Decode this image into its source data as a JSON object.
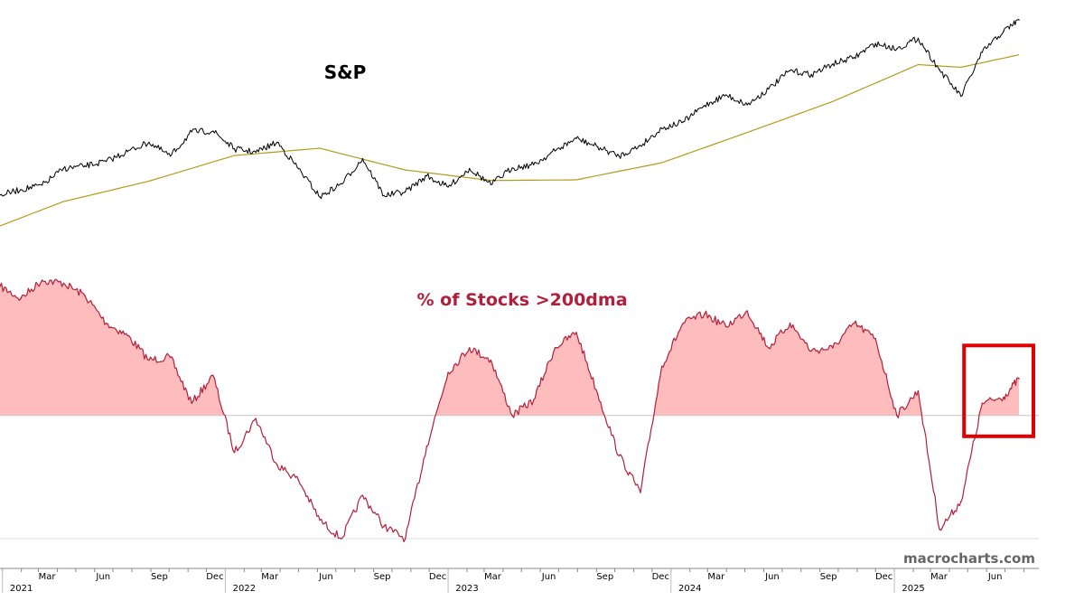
{
  "chart_data": [
    {
      "type": "line",
      "title": "S&P",
      "series": [
        {
          "x": [
            "2020-12-28",
            "2021-01-31",
            "2021-03-07",
            "2021-04-11",
            "2021-05-16",
            "2021-06-20",
            "2021-07-25",
            "2021-08-29",
            "2021-10-03",
            "2021-11-07",
            "2021-12-12",
            "2022-01-16",
            "2022-02-20",
            "2022-03-27",
            "2022-05-01",
            "2022-06-05",
            "2022-07-10",
            "2022-08-14",
            "2022-09-18",
            "2022-10-23",
            "2022-11-27",
            "2023-01-01",
            "2023-02-05",
            "2023-03-12",
            "2023-04-16",
            "2023-05-21",
            "2023-06-25",
            "2023-07-30",
            "2023-09-03",
            "2023-10-08",
            "2023-11-12",
            "2023-12-17",
            "2024-01-21",
            "2024-02-25",
            "2024-03-31",
            "2024-05-05",
            "2024-06-09",
            "2024-07-14",
            "2024-08-18",
            "2024-09-22",
            "2024-10-27",
            "2024-12-01",
            "2025-01-05",
            "2025-02-09",
            "2025-03-16",
            "2025-04-20",
            "2025-05-25",
            "2025-06-29",
            "2025-07-24"
          ],
          "values": [
            3730,
            3810,
            3880,
            4130,
            4170,
            4240,
            4390,
            4530,
            4320,
            4690,
            4700,
            4430,
            4380,
            4530,
            4130,
            3700,
            3900,
            4280,
            3720,
            3780,
            4020,
            3850,
            4130,
            3890,
            4140,
            4190,
            4400,
            4590,
            4460,
            4320,
            4480,
            4740,
            4840,
            5090,
            5250,
            5100,
            5340,
            5620,
            5560,
            5720,
            5820,
            6030,
            5950,
            6110,
            5630,
            5230,
            5900,
            6220,
            6390
          ]
        },
        {
          "x": [
            "2020-12-28",
            "2021-04-11",
            "2021-08-29",
            "2022-01-16",
            "2022-06-05",
            "2022-10-23",
            "2023-03-12",
            "2023-07-30",
            "2023-12-17",
            "2024-05-05",
            "2024-09-22",
            "2025-02-09",
            "2025-04-20",
            "2025-07-24"
          ],
          "values": [
            3260,
            3630,
            3940,
            4330,
            4440,
            4110,
            3950,
            3960,
            4220,
            4680,
            5150,
            5710,
            5670,
            5860
          ]
        }
      ]
    },
    {
      "type": "area",
      "title": "% of Stocks >200dma",
      "x": [
        "2020-12-28",
        "2021-01-31",
        "2021-03-07",
        "2021-04-11",
        "2021-05-16",
        "2021-06-20",
        "2021-07-25",
        "2021-08-29",
        "2021-10-03",
        "2021-11-07",
        "2021-12-12",
        "2022-01-16",
        "2022-02-20",
        "2022-03-27",
        "2022-05-01",
        "2022-06-05",
        "2022-07-10",
        "2022-08-14",
        "2022-09-18",
        "2022-10-23",
        "2022-11-27",
        "2023-01-01",
        "2023-02-05",
        "2023-03-12",
        "2023-04-16",
        "2023-05-21",
        "2023-06-25",
        "2023-07-30",
        "2023-09-03",
        "2023-10-08",
        "2023-11-12",
        "2023-12-17",
        "2024-01-21",
        "2024-02-25",
        "2024-03-31",
        "2024-05-05",
        "2024-06-09",
        "2024-07-14",
        "2024-08-18",
        "2024-09-22",
        "2024-10-27",
        "2024-12-01",
        "2025-01-05",
        "2025-02-09",
        "2025-03-16",
        "2025-04-20",
        "2025-05-25",
        "2025-06-29",
        "2025-07-24"
      ],
      "values": [
        92,
        88,
        94,
        93,
        89,
        80,
        76,
        68,
        69,
        54,
        63,
        38,
        49,
        34,
        29,
        16,
        10,
        24,
        14,
        10,
        40,
        64,
        72,
        68,
        50,
        55,
        72,
        77,
        57,
        37,
        25,
        66,
        80,
        83,
        79,
        84,
        72,
        80,
        71,
        72,
        80,
        75,
        50,
        58,
        13,
        22,
        54,
        56,
        62
      ],
      "baseline": 50,
      "highlight": "2025-05 to 2025-07"
    }
  ],
  "axis": {
    "months": [
      "Mar",
      "Jun",
      "Sep",
      "Dec",
      "Mar",
      "Jun",
      "Sep",
      "Dec",
      "Mar",
      "Jun",
      "Sep",
      "Dec",
      "Mar",
      "Jun",
      "Sep",
      "Dec",
      "Mar",
      "Jun"
    ],
    "years": [
      "2021",
      "2022",
      "2023",
      "2024",
      "2025"
    ]
  },
  "labels": {
    "sp_title": "S&P",
    "breadth_title": "% of Stocks >200dma",
    "watermark": "macrocharts.com"
  },
  "colors": {
    "sp_line": "#000000",
    "ma_line": "#b39b1a",
    "breadth_line": "#b0203a",
    "breadth_fill": "#ffbcbc",
    "breadth_title": "#b0203a",
    "highlight_box": "#e00000",
    "baseline": "#c8c8c8"
  }
}
